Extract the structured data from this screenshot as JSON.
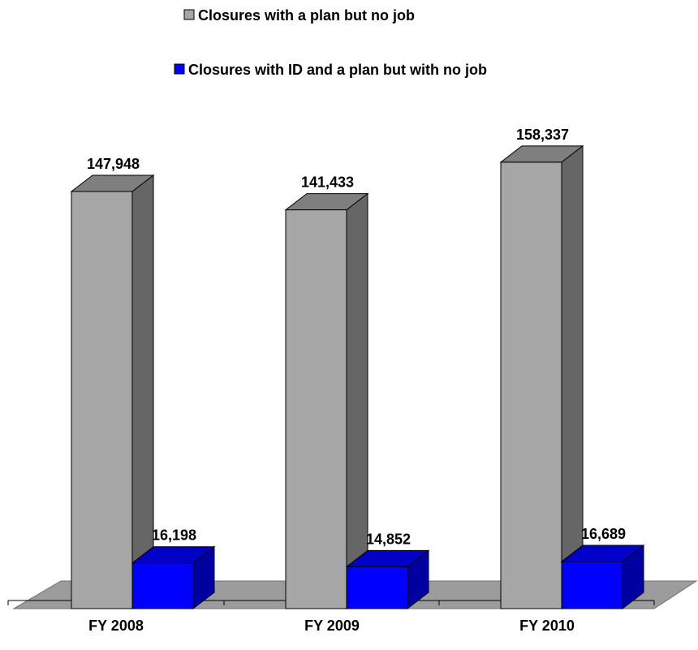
{
  "chart_data": {
    "type": "bar",
    "categories": [
      "FY 2008",
      "FY 2009",
      "FY 2010"
    ],
    "series": [
      {
        "name": "Closures with a plan but no job",
        "values": [
          147948,
          141433,
          158337
        ],
        "labels": [
          "147,948",
          "141,433",
          "158,337"
        ]
      },
      {
        "name": "Closures with ID and a plan but with no job",
        "values": [
          16198,
          14852,
          16689
        ],
        "labels": [
          "16,198",
          "14,852",
          "16,689"
        ]
      }
    ],
    "title": "",
    "xlabel": "",
    "ylabel": "",
    "ylim": [
      0,
      190000
    ],
    "three_d": true,
    "grid": false,
    "legend_position": "top-center"
  },
  "colors": {
    "series": [
      {
        "front": "#a6a6a6",
        "top": "#7f7f7f",
        "side": "#666666"
      },
      {
        "front": "#0000ff",
        "top": "#0000c8",
        "side": "#0000a0"
      }
    ],
    "floor": "#9c9c9c",
    "outline": "#000000"
  }
}
